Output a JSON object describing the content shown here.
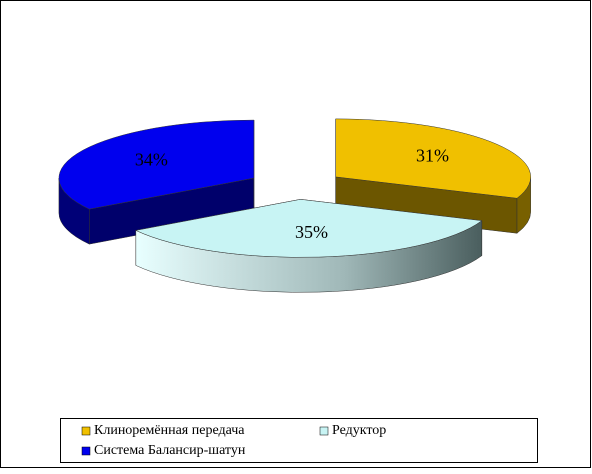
{
  "chart_data": {
    "type": "pie",
    "three_d": true,
    "exploded": true,
    "categories": [
      "Клиноремённая передача",
      "Редуктор",
      "Система Балансир-шатун"
    ],
    "values": [
      31,
      35,
      34
    ],
    "value_labels": [
      "31%",
      "35%",
      "34%"
    ],
    "colors": [
      "#f0c000",
      "#c8f4f4",
      "#0000ee"
    ],
    "legend": "bottom"
  }
}
